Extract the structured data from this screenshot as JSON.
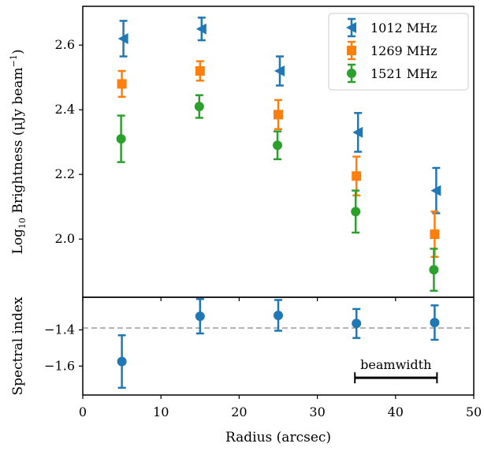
{
  "chart_data": [
    {
      "type": "scatter",
      "panel": "top",
      "ylabel_main": "Log",
      "ylabel_sub": "10",
      "ylabel_rest": " Brightness (μJy beam",
      "ylabel_sup": "−1",
      "ylabel_close": ")",
      "xlim": [
        0,
        50
      ],
      "ylim": [
        1.82,
        2.72
      ],
      "yticks": [
        2.0,
        2.2,
        2.4,
        2.6
      ],
      "ytick_labels": [
        "2.0",
        "2.2",
        "2.4",
        "2.6"
      ],
      "legend_position": "top-right",
      "series": [
        {
          "name": "1012 MHz",
          "color": "#1f77b4",
          "marker": "triangle-left",
          "x": [
            5.2,
            15.2,
            25.2,
            35.2,
            45.2
          ],
          "y": [
            2.62,
            2.65,
            2.52,
            2.33,
            2.15
          ],
          "yerr": [
            0.055,
            0.035,
            0.045,
            0.06,
            0.07
          ]
        },
        {
          "name": "1269 MHz",
          "color": "#ff7f0e",
          "marker": "square",
          "x": [
            5.0,
            15.0,
            25.0,
            35.0,
            45.0
          ],
          "y": [
            2.48,
            2.52,
            2.385,
            2.195,
            2.015
          ],
          "yerr": [
            0.04,
            0.03,
            0.045,
            0.06,
            0.07
          ]
        },
        {
          "name": "1521 MHz",
          "color": "#2ca02c",
          "marker": "circle",
          "x": [
            4.9,
            14.9,
            24.9,
            34.9,
            44.9
          ],
          "y": [
            2.31,
            2.41,
            2.29,
            2.085,
            1.905
          ],
          "yerr": [
            0.072,
            0.035,
            0.043,
            0.065,
            0.065
          ]
        }
      ]
    },
    {
      "type": "scatter",
      "panel": "bottom",
      "ylabel": "Spectral index",
      "xlabel": "Radius (arcsec)",
      "xlim": [
        0,
        50
      ],
      "ylim": [
        -1.76,
        -1.22
      ],
      "xticks": [
        0,
        10,
        20,
        30,
        40,
        50
      ],
      "xtick_labels": [
        "0",
        "10",
        "20",
        "30",
        "40",
        "50"
      ],
      "yticks": [
        -1.4,
        -1.6
      ],
      "ytick_labels": [
        "−1.4",
        "−1.6"
      ],
      "reference_line": {
        "y": -1.39,
        "style": "dashed",
        "color": "#aaaaaa"
      },
      "series": [
        {
          "color": "#1f77b4",
          "marker": "circle",
          "x": [
            5,
            15,
            25,
            35,
            45
          ],
          "y": [
            -1.575,
            -1.325,
            -1.32,
            -1.365,
            -1.36
          ],
          "yerr": [
            0.145,
            0.095,
            0.085,
            0.08,
            0.095
          ]
        }
      ],
      "annotation": {
        "text": "beamwidth",
        "x_start": 34.8,
        "x_end": 45.3,
        "y": -1.665
      }
    }
  ]
}
